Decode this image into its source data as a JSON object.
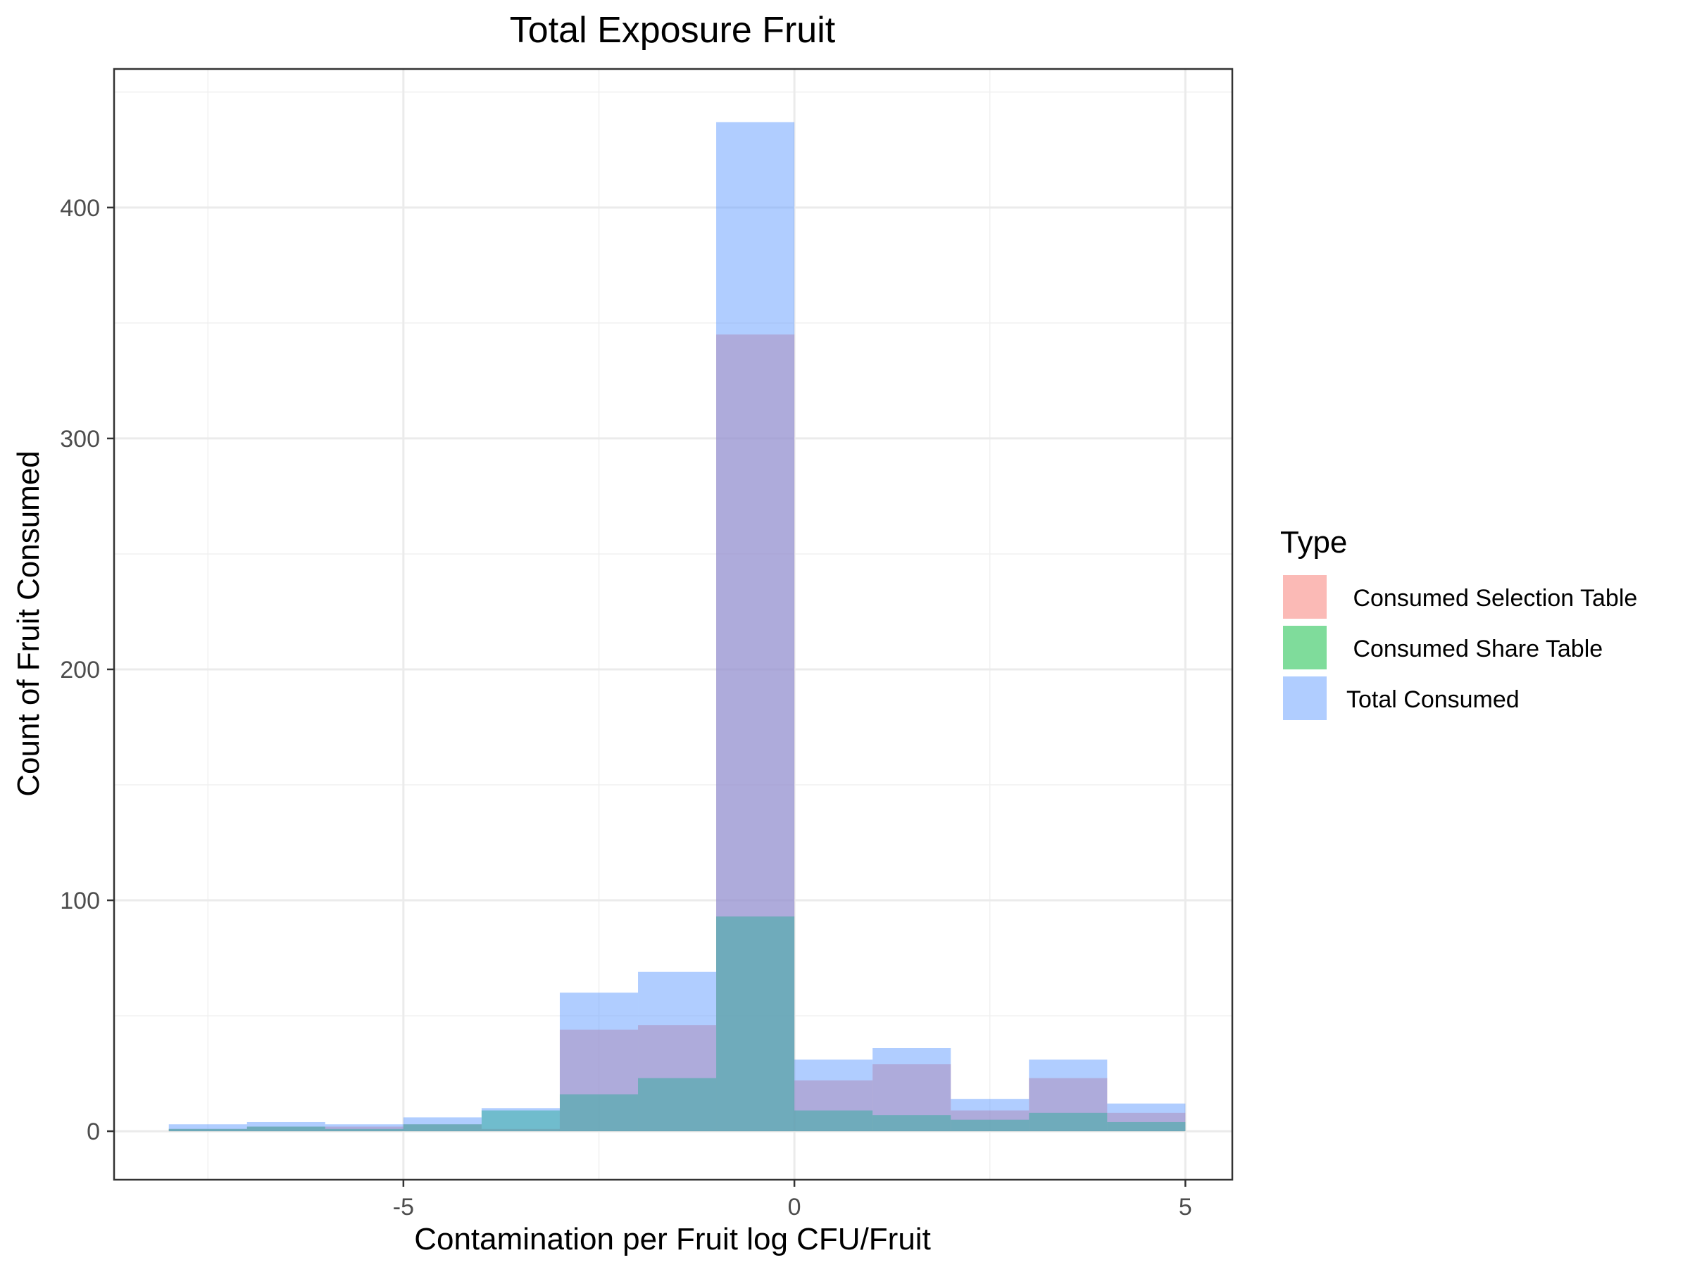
{
  "chart_data": {
    "type": "histogram",
    "title": "Total Exposure Fruit",
    "xlabel": "Contamination per Fruit log CFU/Fruit",
    "ylabel": "Count of Fruit Consumed",
    "xlim": [
      -8.7,
      5.6
    ],
    "ylim": [
      -21,
      460
    ],
    "x_ticks": [
      -5,
      0,
      5
    ],
    "y_ticks": [
      0,
      100,
      200,
      300,
      400
    ],
    "grid": true,
    "legend": {
      "title": "Type",
      "position": "right",
      "items": [
        {
          "label": " Consumed Selection Table",
          "color": "#F8766D"
        },
        {
          "label": " Consumed Share Table",
          "color": "#00BA38"
        },
        {
          "label": "Total Consumed",
          "color": "#619CFF"
        }
      ]
    },
    "bins": [
      {
        "x0": -8,
        "x1": -7
      },
      {
        "x0": -7,
        "x1": -6
      },
      {
        "x0": -6,
        "x1": -5
      },
      {
        "x0": -5,
        "x1": -4
      },
      {
        "x0": -4,
        "x1": -3
      },
      {
        "x0": -3,
        "x1": -2
      },
      {
        "x0": -2,
        "x1": -1
      },
      {
        "x0": -1,
        "x1": 0
      },
      {
        "x0": 0,
        "x1": 1
      },
      {
        "x0": 1,
        "x1": 2
      },
      {
        "x0": 2,
        "x1": 3
      },
      {
        "x0": 3,
        "x1": 4
      },
      {
        "x0": 4,
        "x1": 5
      }
    ],
    "series": [
      {
        "name": " Consumed Selection Table",
        "color": "#F8766D",
        "values": [
          1,
          2,
          2,
          3,
          1,
          44,
          46,
          345,
          22,
          29,
          9,
          23,
          8
        ]
      },
      {
        "name": " Consumed Share Table",
        "color": "#00BA38",
        "values": [
          1,
          2,
          1,
          3,
          9,
          16,
          23,
          93,
          9,
          7,
          5,
          8,
          4
        ]
      },
      {
        "name": "Total Consumed",
        "color": "#619CFF",
        "values": [
          3,
          4,
          3,
          6,
          10,
          60,
          69,
          437,
          31,
          36,
          14,
          31,
          12
        ]
      }
    ]
  }
}
